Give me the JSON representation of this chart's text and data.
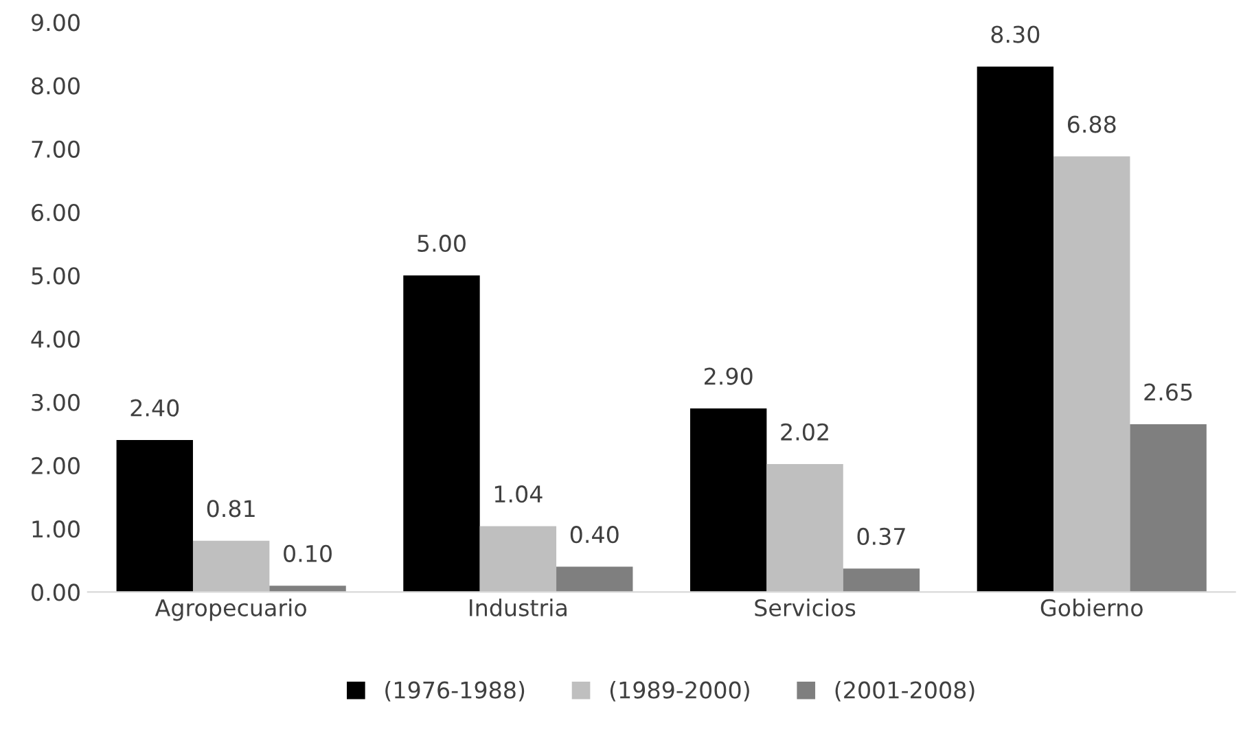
{
  "chart_data": {
    "type": "bar",
    "categories": [
      "Agropecuario",
      "Industria",
      "Servicios",
      "Gobierno"
    ],
    "series": [
      {
        "name": "(1976-1988)",
        "color": "#000000",
        "values": [
          2.4,
          5.0,
          2.9,
          8.3
        ],
        "value_labels": [
          "2.40",
          "5.00",
          "2.90",
          "8.30"
        ]
      },
      {
        "name": "(1989-2000)",
        "color": "#bfbfbf",
        "values": [
          0.81,
          1.04,
          2.02,
          6.88
        ],
        "value_labels": [
          "0.81",
          "1.04",
          "2.02",
          "6.88"
        ]
      },
      {
        "name": "(2001-2008)",
        "color": "#7f7f7f",
        "values": [
          0.1,
          0.4,
          0.37,
          2.65
        ],
        "value_labels": [
          "0.10",
          "0.40",
          "0.37",
          "2.65"
        ]
      }
    ],
    "ylim": [
      0,
      9
    ],
    "yticks": [
      {
        "value": 0,
        "label": "0.00"
      },
      {
        "value": 1,
        "label": "1.00"
      },
      {
        "value": 2,
        "label": "2.00"
      },
      {
        "value": 3,
        "label": "3.00"
      },
      {
        "value": 4,
        "label": "4.00"
      },
      {
        "value": 5,
        "label": "5.00"
      },
      {
        "value": 6,
        "label": "6.00"
      },
      {
        "value": 7,
        "label": "7.00"
      },
      {
        "value": 8,
        "label": "8.00"
      },
      {
        "value": 9,
        "label": "9.00"
      }
    ],
    "grid": false,
    "legend": "bottom"
  }
}
